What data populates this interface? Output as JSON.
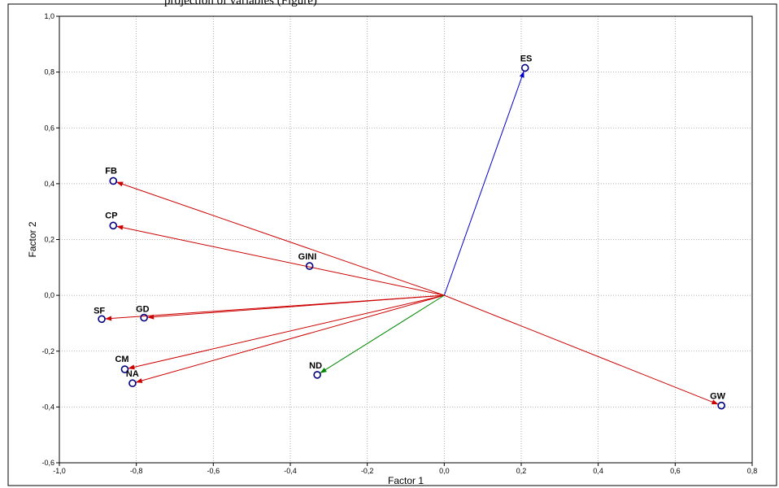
{
  "header_text": "projection of variables (Figure)",
  "chart_data": {
    "type": "scatter",
    "xlabel": "Factor 1",
    "ylabel": "Factor 2",
    "xlim": [
      -1.0,
      0.8
    ],
    "ylim": [
      -0.6,
      1.0
    ],
    "x_ticks": [
      "-1,0",
      "-0,8",
      "-0,6",
      "-0,4",
      "-0,2",
      "0,0",
      "0,2",
      "0,4",
      "0,6",
      "0,8"
    ],
    "x_tick_values": [
      -1.0,
      -0.8,
      -0.6,
      -0.4,
      -0.2,
      0.0,
      0.2,
      0.4,
      0.6,
      0.8
    ],
    "y_ticks": [
      "-0,6",
      "-0,4",
      "-0,2",
      "0,0",
      "0,2",
      "0,4",
      "0,6",
      "0,8",
      "1,0"
    ],
    "y_tick_values": [
      -0.6,
      -0.4,
      -0.2,
      0.0,
      0.2,
      0.4,
      0.6,
      0.8,
      1.0
    ],
    "grid": true,
    "origin": [
      0.0,
      0.0
    ],
    "points": [
      {
        "label": "ES",
        "x": 0.21,
        "y": 0.815,
        "arrow_color": "#0000cc",
        "arrow": true
      },
      {
        "label": "FB",
        "x": -0.86,
        "y": 0.41,
        "arrow_color": "#cc0000",
        "arrow": true
      },
      {
        "label": "CP",
        "x": -0.86,
        "y": 0.25,
        "arrow_color": "#cc0000",
        "arrow": true
      },
      {
        "label": "GINI",
        "x": -0.35,
        "y": 0.105,
        "arrow_color": "#cc0000",
        "arrow": false
      },
      {
        "label": "SF",
        "x": -0.89,
        "y": -0.085,
        "arrow_color": "#cc0000",
        "arrow": true
      },
      {
        "label": "GD",
        "x": -0.78,
        "y": -0.08,
        "arrow_color": "#cc0000",
        "arrow": true
      },
      {
        "label": "CM",
        "x": -0.83,
        "y": -0.265,
        "arrow_color": "#cc0000",
        "arrow": true
      },
      {
        "label": "NA",
        "x": -0.81,
        "y": -0.315,
        "arrow_color": "#cc0000",
        "arrow": true
      },
      {
        "label": "ND",
        "x": -0.33,
        "y": -0.285,
        "arrow_color": "#008800",
        "arrow": true
      },
      {
        "label": "GW",
        "x": 0.72,
        "y": -0.395,
        "arrow_color": "#cc0000",
        "arrow": true
      }
    ],
    "marker_color": "#000080"
  }
}
